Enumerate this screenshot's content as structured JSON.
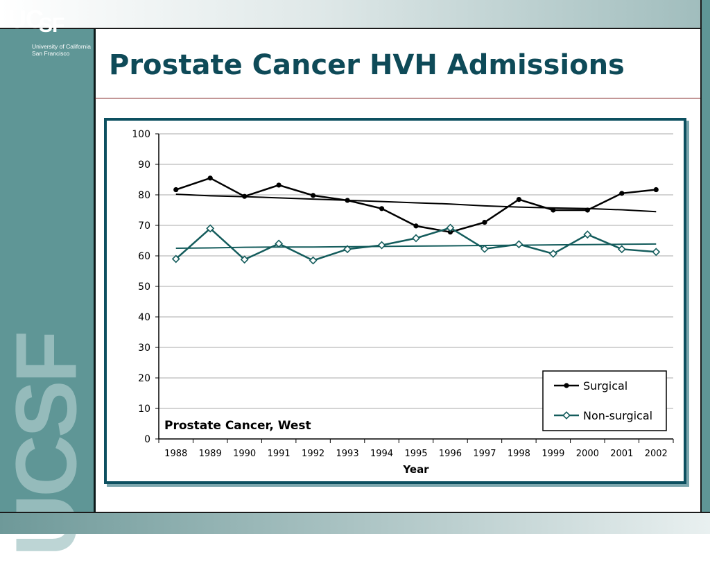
{
  "title": "Prostate Cancer HVH Admissions",
  "logo": {
    "letters": "UCSF",
    "line1": "University of California",
    "line2": "San Francisco"
  },
  "watermark": "UCSF",
  "colors": {
    "teal_sidebar": "#5f9696",
    "title_text": "#0e4a58",
    "chart_border": "#0d5060",
    "surgical": "#000000",
    "non_surgical": "#145c5c"
  },
  "chart_data": {
    "type": "line",
    "annotation": "Prostate Cancer, West",
    "xlabel": "Year",
    "ylabel": "",
    "categories": [
      "1988",
      "1989",
      "1990",
      "1991",
      "1992",
      "1993",
      "1994",
      "1995",
      "1996",
      "1997",
      "1998",
      "1999",
      "2000",
      "2001",
      "2002"
    ],
    "ylim": [
      0,
      100
    ],
    "yticks": [
      0,
      10,
      20,
      30,
      40,
      50,
      60,
      70,
      80,
      90,
      100
    ],
    "grid": true,
    "legend_position": "bottom-right",
    "series": [
      {
        "name": "Surgical",
        "marker": "filled-circle",
        "color": "#000000",
        "values": [
          81.7,
          85.5,
          79.5,
          83.2,
          79.8,
          78.2,
          75.5,
          69.8,
          67.8,
          71.0,
          78.5,
          75.0,
          75.0,
          80.5,
          81.7
        ],
        "trend": [
          80.2,
          79.7,
          79.4,
          79.0,
          78.6,
          78.2,
          77.8,
          77.4,
          77.0,
          76.4,
          76.0,
          75.7,
          75.5,
          75.1,
          74.5
        ]
      },
      {
        "name": "Non-surgical",
        "marker": "open-diamond",
        "color": "#145c5c",
        "values": [
          59.0,
          69.0,
          58.8,
          64.0,
          58.5,
          62.2,
          63.5,
          65.8,
          69.2,
          62.3,
          63.8,
          60.7,
          67.0,
          62.2,
          61.3
        ],
        "trend": [
          62.5,
          62.6,
          62.8,
          62.9,
          62.9,
          63.0,
          63.1,
          63.2,
          63.3,
          63.4,
          63.5,
          63.6,
          63.7,
          63.8,
          63.9
        ]
      }
    ]
  }
}
